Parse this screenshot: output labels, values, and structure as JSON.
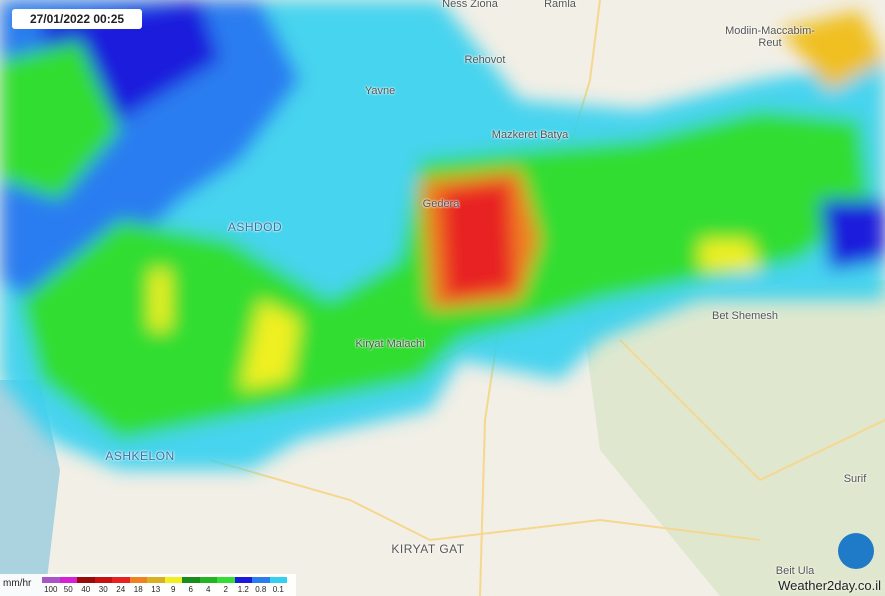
{
  "timestamp": "27/01/2022 00:25",
  "places": [
    "Ness Ziona",
    "Ramla",
    "Rehovot",
    "Modiin-Maccabim-Reut",
    "Yavne",
    "Mazkeret Batya",
    "Gedera",
    "ASHDOD",
    "Kiryat Malachi",
    "Bet Shemesh",
    "ASHKELON",
    "Surif",
    "KIRYAT GAT",
    "Beit Ula"
  ],
  "legend": {
    "unit": "mm/hr",
    "items": [
      {
        "label": "100",
        "color": "#a855c8"
      },
      {
        "label": "50",
        "color": "#d61fd6"
      },
      {
        "label": "40",
        "color": "#9b0a0a"
      },
      {
        "label": "30",
        "color": "#c81010"
      },
      {
        "label": "24",
        "color": "#e82020"
      },
      {
        "label": "18",
        "color": "#f08020"
      },
      {
        "label": "13",
        "color": "#d8b020"
      },
      {
        "label": "9",
        "color": "#f0f020"
      },
      {
        "label": "6",
        "color": "#1a8c1a"
      },
      {
        "label": "4",
        "color": "#22b422"
      },
      {
        "label": "2",
        "color": "#33dd33"
      },
      {
        "label": "1.2",
        "color": "#1a1adc"
      },
      {
        "label": "0.8",
        "color": "#2a7df0"
      },
      {
        "label": "0.1",
        "color": "#33d0f0"
      }
    ]
  },
  "watermark": "Weather2day.co.il"
}
